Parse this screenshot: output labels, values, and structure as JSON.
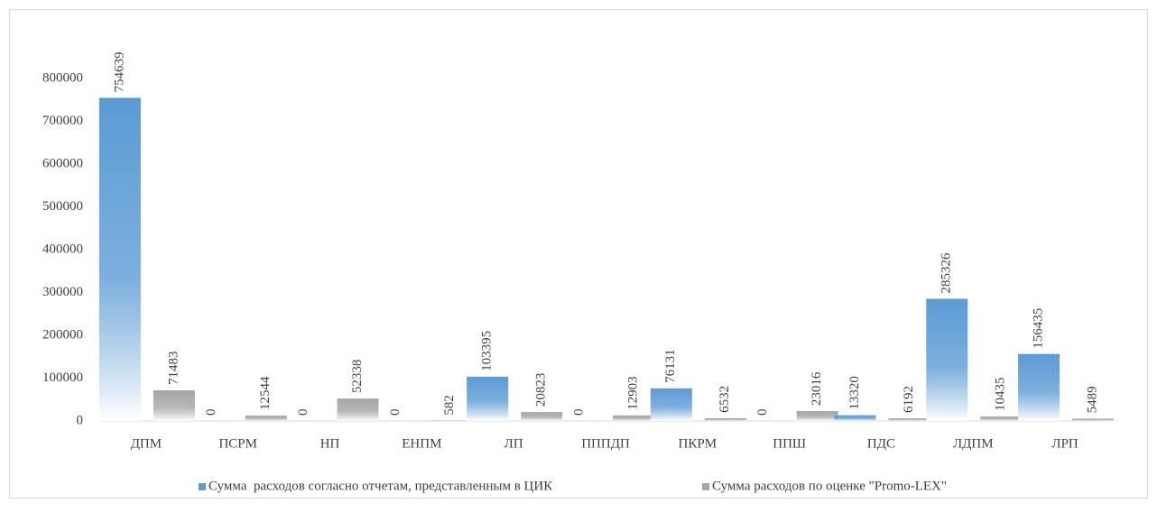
{
  "chart_data": {
    "type": "bar",
    "categories": [
      "ДПМ",
      "ПСРМ",
      "НП",
      "ЕНПМ",
      "ЛП",
      "ПППДП",
      "ПКРМ",
      "ППШ",
      "ПДС",
      "ЛДПМ",
      "ЛРП"
    ],
    "series": [
      {
        "name": "Сумма  расходов согласно отчетам, представленным в ЦИК",
        "color": "#5b9bd5",
        "values": [
          754639,
          0,
          0,
          0,
          103395,
          0,
          76131,
          0,
          13320,
          285326,
          156435
        ]
      },
      {
        "name": "Сумма расходов по оценке \"Promo-LEX\"",
        "color": "#a5a5a5",
        "values": [
          71483,
          12544,
          52338,
          582,
          20823,
          12903,
          6532,
          23016,
          6192,
          10435,
          5489
        ]
      }
    ],
    "ylim": [
      0,
      800000
    ],
    "yticks": [
      0,
      100000,
      200000,
      300000,
      400000,
      500000,
      600000,
      700000,
      800000
    ],
    "grid": false,
    "legend": "bottom"
  }
}
